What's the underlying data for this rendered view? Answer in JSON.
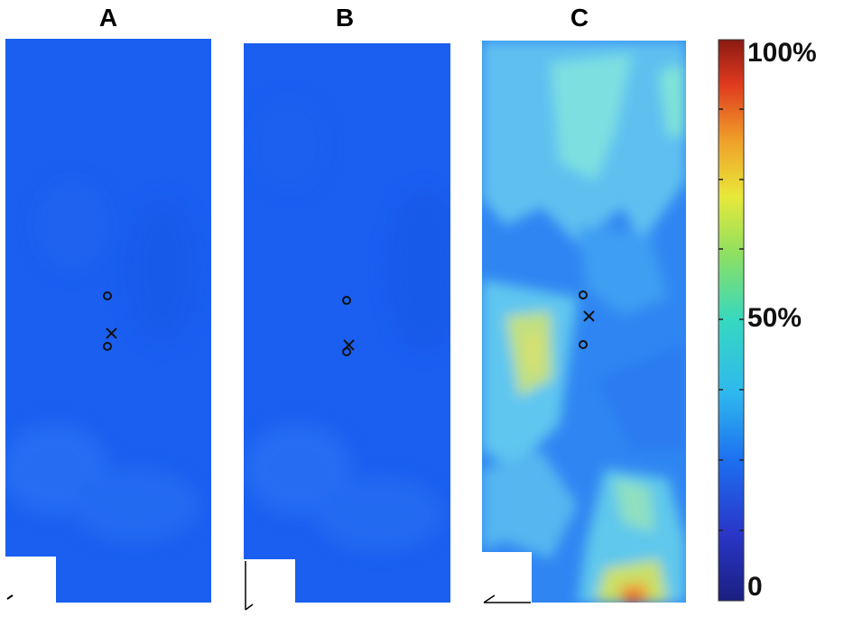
{
  "chart_data": {
    "type": "heatmap",
    "panels": [
      {
        "label": "A",
        "shading": "uniform-low"
      },
      {
        "label": "B",
        "shading": "uniform-low"
      },
      {
        "label": "C",
        "shading": "variable"
      }
    ],
    "colorbar": {
      "tick_labels": [
        "100%",
        "50%",
        "0"
      ],
      "tick_values": [
        100,
        50,
        0
      ],
      "range": [
        0,
        100
      ],
      "colormap": "jet"
    },
    "markers": {
      "circle": "o",
      "cross": "x"
    }
  },
  "colors": {
    "low": "#1a5ff0",
    "background": "#ffffff"
  }
}
